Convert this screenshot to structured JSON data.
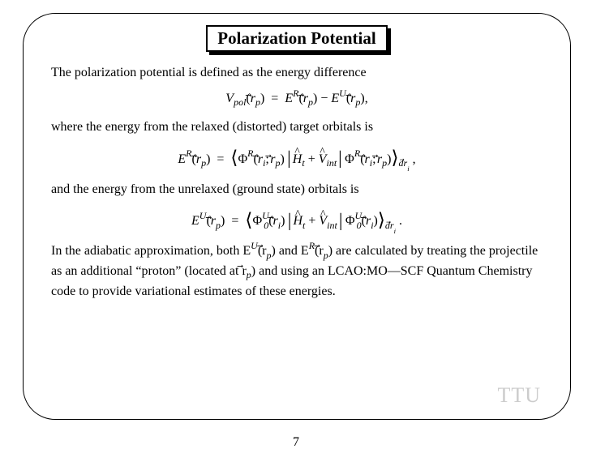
{
  "title": "Polarization Potential",
  "para1": "The polarization potential is defined as the energy difference",
  "para2": "where the energy from the relaxed (distorted) target orbitals is",
  "para3": "and the energy from the unrelaxed (ground state) orbitals is",
  "para4_a": "In the adiabatic approximation, both ",
  "para4_b": " and ",
  "para4_c": " are calculated by treating the projectile as an additional “proton” (located at ",
  "para4_d": ") and using an LCAO:MO—SCF Quantum Chemistry code to provide variational estimates of these energies.",
  "watermark": "TTU",
  "pagenum": "7",
  "sym": {
    "V": "V",
    "pol": "pol",
    "rp": "r",
    "p": "p",
    "eq": "=",
    "E": "E",
    "R": "R",
    "U": "U",
    "minus": "−",
    "Phi": "Φ",
    "ri": "r",
    "i": "i",
    "semi": ";",
    "H": "H",
    "t": "t",
    "plus": "+",
    "Vint": "V",
    "int": "int",
    "zero": "0",
    "d": "d",
    "comma": ",",
    "period": ".",
    "lang": "⟨",
    "rang": "⟩"
  }
}
